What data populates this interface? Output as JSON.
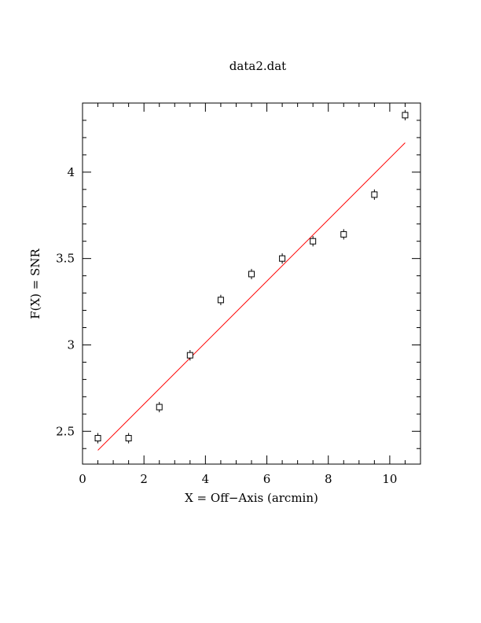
{
  "chart_data": {
    "type": "scatter",
    "title": "data2.dat",
    "xlabel": "X = Off−Axis (arcmin)",
    "ylabel": "F(X) = SNR",
    "xlim": [
      0,
      11
    ],
    "ylim": [
      2.31,
      4.4
    ],
    "x_ticks": [
      {
        "value": 0,
        "label": "0"
      },
      {
        "value": 2,
        "label": "2"
      },
      {
        "value": 4,
        "label": "4"
      },
      {
        "value": 6,
        "label": "6"
      },
      {
        "value": 8,
        "label": "8"
      },
      {
        "value": 10,
        "label": "10"
      }
    ],
    "y_ticks": [
      {
        "value": 2.5,
        "label": "2.5"
      },
      {
        "value": 3,
        "label": "3"
      },
      {
        "value": 3.5,
        "label": "3.5"
      },
      {
        "value": 4,
        "label": "4"
      }
    ],
    "x_minor_step": 0.5,
    "y_minor_step": 0.1,
    "grid": false,
    "series": [
      {
        "kind": "points-with-errorbars",
        "color": "#000000",
        "points": [
          {
            "x": 0.5,
            "y": 2.46,
            "err": 0.03
          },
          {
            "x": 1.5,
            "y": 2.46,
            "err": 0.03
          },
          {
            "x": 2.5,
            "y": 2.64,
            "err": 0.03
          },
          {
            "x": 3.5,
            "y": 2.94,
            "err": 0.03
          },
          {
            "x": 4.5,
            "y": 3.26,
            "err": 0.03
          },
          {
            "x": 5.5,
            "y": 3.41,
            "err": 0.03
          },
          {
            "x": 6.5,
            "y": 3.5,
            "err": 0.03
          },
          {
            "x": 7.5,
            "y": 3.6,
            "err": 0.03
          },
          {
            "x": 8.5,
            "y": 3.64,
            "err": 0.03
          },
          {
            "x": 9.5,
            "y": 3.87,
            "err": 0.03
          },
          {
            "x": 10.5,
            "y": 4.33,
            "err": 0.03
          }
        ]
      },
      {
        "kind": "fit-line",
        "color": "#ff0000",
        "x": [
          0.5,
          10.5
        ],
        "y": [
          2.39,
          4.17
        ]
      }
    ]
  }
}
